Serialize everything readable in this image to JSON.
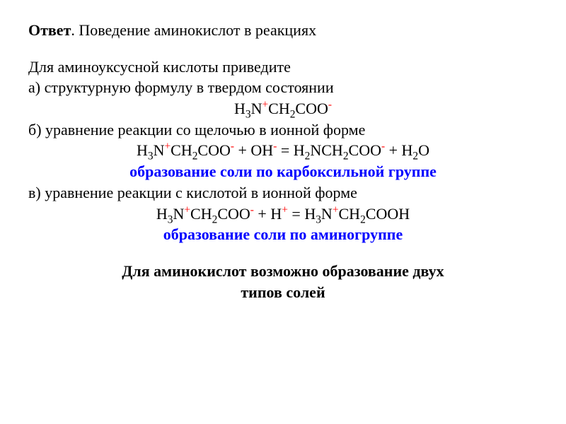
{
  "colors": {
    "text": "#000000",
    "blue": "#0000ff",
    "red": "#ff0000",
    "background": "#ffffff"
  },
  "typography": {
    "font_family": "Times New Roman",
    "base_fontsize_pt": 17,
    "line_height": 1.35
  },
  "title": {
    "label_bold": "Ответ",
    "label_rest": ". Поведение аминокислот в реакциях"
  },
  "intro": "Для аминоуксусной кислоты приведите",
  "part_a": {
    "prompt": "а) структурную формулу в твердом состоянии",
    "formula": {
      "seg1": "H",
      "sub1": "3",
      "seg2": "N",
      "sup1": "+",
      "seg3": "CH",
      "sub2": "2",
      "seg4": "COO",
      "sup2": "-"
    }
  },
  "part_b": {
    "prompt": "б) уравнение реакции со щелочью в ионной форме",
    "equation": {
      "l_seg1": "H",
      "l_sub1": "3",
      "l_seg2": "N",
      "l_sup1": "+",
      "l_seg3": "CH",
      "l_sub2": "2",
      "l_seg4": "COO",
      "l_sup2": "-",
      "plus1": " + ",
      "l_seg5": "OH",
      "l_sup3": "-",
      "eq": " = ",
      "r_seg1": "H",
      "r_sub1": "2",
      "r_seg2": "NCH",
      "r_sub2": "2",
      "r_seg3": "COO",
      "r_sup1": "-",
      "plus2": " + ",
      "r_seg4": "H",
      "r_sub3": "2",
      "r_seg5": "O"
    },
    "note": "образование соли по карбоксильной группе"
  },
  "part_c": {
    "prompt": "в) уравнение реакции с кислотой в ионной форме",
    "equation": {
      "l_seg1": "H",
      "l_sub1": "3",
      "l_seg2": "N",
      "l_sup1": "+",
      "l_seg3": "CH",
      "l_sub2": "2",
      "l_seg4": "COO",
      "l_sup2": "-",
      "plus1": " + ",
      "l_seg5": "H",
      "l_sup3": "+",
      "eq": " = ",
      "r_seg1": "H",
      "r_sub1": "3",
      "r_seg2": "N",
      "r_sup1": "+",
      "r_seg3": "CH",
      "r_sub2": "2",
      "r_seg4": "COOH"
    },
    "note": "образование соли по аминогруппе"
  },
  "conclusion": {
    "line1": "Для аминокислот возможно образование двух",
    "line2": "типов солей"
  }
}
